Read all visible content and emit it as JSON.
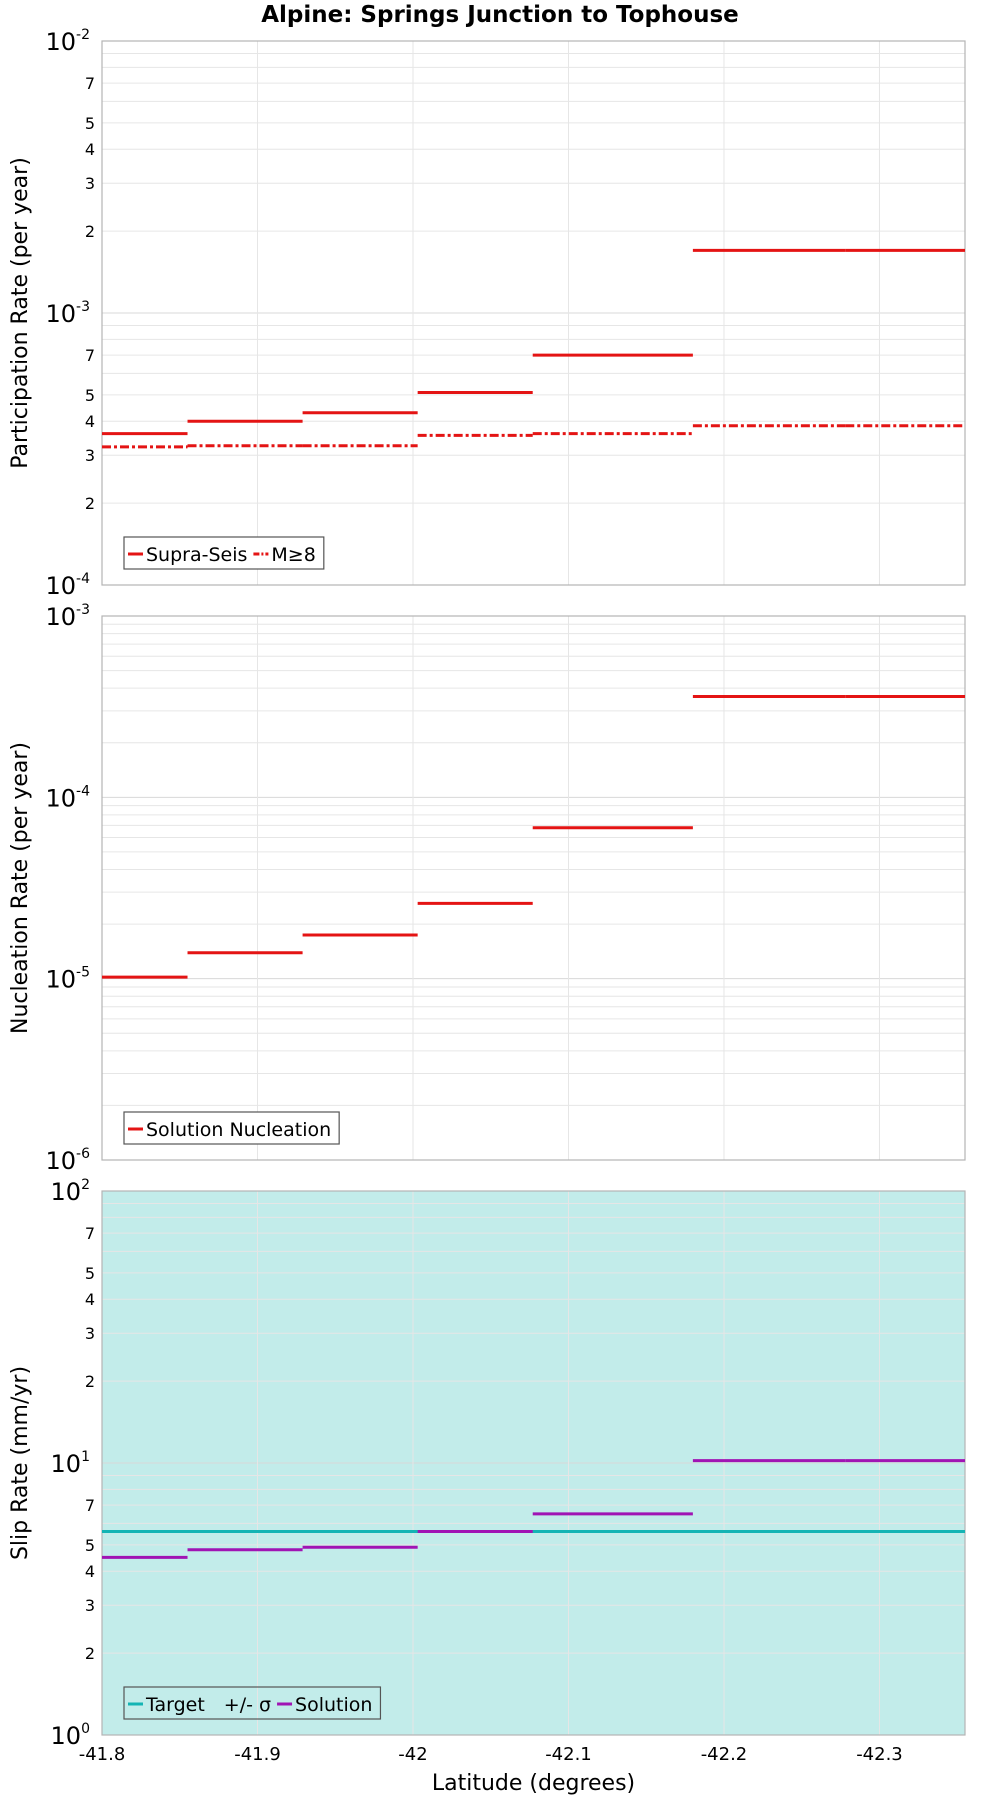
{
  "title": "Alpine: Springs Junction to Tophouse",
  "chart_data": [
    {
      "type": "line",
      "ylabel": "Participation Rate (per year)",
      "yscale": "log",
      "ylim": [
        0.0001,
        0.01
      ],
      "y_major_ticks": [
        {
          "base": "10",
          "exp": "-4"
        },
        {
          "base": "10",
          "exp": "-3"
        },
        {
          "base": "10",
          "exp": "-2"
        }
      ],
      "y_minor_labels": [
        "2",
        "3",
        "4",
        "5",
        "7"
      ],
      "xlim": [
        -41.8,
        -42.355
      ],
      "grid": true,
      "legend_position": "bottom-left",
      "series": [
        {
          "name": "Supra-Seis",
          "color": "#e41414",
          "style": "solid",
          "steps": [
            {
              "x0": -41.8,
              "x1": -41.855,
              "y": 0.00036
            },
            {
              "x0": -41.855,
              "x1": -41.929,
              "y": 0.0004
            },
            {
              "x0": -41.929,
              "x1": -42.003,
              "y": 0.00043
            },
            {
              "x0": -42.003,
              "x1": -42.077,
              "y": 0.00051
            },
            {
              "x0": -42.077,
              "x1": -42.18,
              "y": 0.0007
            },
            {
              "x0": -42.18,
              "x1": -42.278,
              "y": 0.0017
            },
            {
              "x0": -42.278,
              "x1": -42.355,
              "y": 0.0017
            }
          ]
        },
        {
          "name": "M≥8",
          "color": "#e41414",
          "style": "dashdot",
          "steps": [
            {
              "x0": -41.8,
              "x1": -41.855,
              "y": 0.000322
            },
            {
              "x0": -41.855,
              "x1": -41.929,
              "y": 0.000325
            },
            {
              "x0": -41.929,
              "x1": -42.003,
              "y": 0.000325
            },
            {
              "x0": -42.003,
              "x1": -42.077,
              "y": 0.000355
            },
            {
              "x0": -42.077,
              "x1": -42.18,
              "y": 0.00036
            },
            {
              "x0": -42.18,
              "x1": -42.278,
              "y": 0.000385
            },
            {
              "x0": -42.278,
              "x1": -42.355,
              "y": 0.000385
            }
          ]
        }
      ]
    },
    {
      "type": "line",
      "ylabel": "Nucleation Rate (per year)",
      "yscale": "log",
      "ylim": [
        1e-06,
        0.001
      ],
      "y_major_ticks": [
        {
          "base": "10",
          "exp": "-6"
        },
        {
          "base": "10",
          "exp": "-5"
        },
        {
          "base": "10",
          "exp": "-4"
        },
        {
          "base": "10",
          "exp": "-3"
        }
      ],
      "y_minor_labels": [],
      "xlim": [
        -41.8,
        -42.355
      ],
      "grid": true,
      "legend_position": "bottom-left",
      "series": [
        {
          "name": "Solution Nucleation",
          "color": "#e41414",
          "style": "solid",
          "steps": [
            {
              "x0": -41.8,
              "x1": -41.855,
              "y": 1.02e-05
            },
            {
              "x0": -41.855,
              "x1": -41.929,
              "y": 1.39e-05
            },
            {
              "x0": -41.929,
              "x1": -42.003,
              "y": 1.74e-05
            },
            {
              "x0": -42.003,
              "x1": -42.077,
              "y": 2.6e-05
            },
            {
              "x0": -42.077,
              "x1": -42.18,
              "y": 6.8e-05
            },
            {
              "x0": -42.18,
              "x1": -42.278,
              "y": 0.00036
            },
            {
              "x0": -42.278,
              "x1": -42.355,
              "y": 0.00036
            }
          ]
        }
      ]
    },
    {
      "type": "line",
      "ylabel": "Slip Rate (mm/yr)",
      "xlabel": "Latitude (degrees)",
      "yscale": "log",
      "ylim": [
        1,
        100
      ],
      "y_major_ticks": [
        {
          "base": "10",
          "exp": "0"
        },
        {
          "base": "10",
          "exp": "1"
        },
        {
          "base": "10",
          "exp": "2"
        }
      ],
      "y_minor_labels": [
        "2",
        "3",
        "4",
        "5",
        "7"
      ],
      "xlim": [
        -41.8,
        -42.355
      ],
      "x_ticks": [
        -41.8,
        -41.9,
        -42,
        -42.1,
        -42.2,
        -42.3
      ],
      "x_tick_labels": [
        "-41.8",
        "-41.9",
        "-42",
        "-42.1",
        "-42.2",
        "-42.3"
      ],
      "grid": true,
      "legend_position": "bottom-left",
      "band": {
        "name": "+/- σ",
        "color": "#c2ecea",
        "y0": 1,
        "y1": 100
      },
      "series": [
        {
          "name": "Target",
          "color": "#14b4b4",
          "style": "solid",
          "steps": [
            {
              "x0": -41.8,
              "x1": -42.355,
              "y": 5.6
            }
          ]
        },
        {
          "name": "Solution",
          "color": "#a014b4",
          "style": "solid",
          "steps": [
            {
              "x0": -41.8,
              "x1": -41.855,
              "y": 4.5
            },
            {
              "x0": -41.855,
              "x1": -41.929,
              "y": 4.8
            },
            {
              "x0": -41.929,
              "x1": -42.003,
              "y": 4.9
            },
            {
              "x0": -42.003,
              "x1": -42.077,
              "y": 5.6
            },
            {
              "x0": -42.077,
              "x1": -42.18,
              "y": 6.5
            },
            {
              "x0": -42.18,
              "x1": -42.278,
              "y": 10.2
            },
            {
              "x0": -42.278,
              "x1": -42.355,
              "y": 10.2
            }
          ]
        }
      ]
    }
  ]
}
